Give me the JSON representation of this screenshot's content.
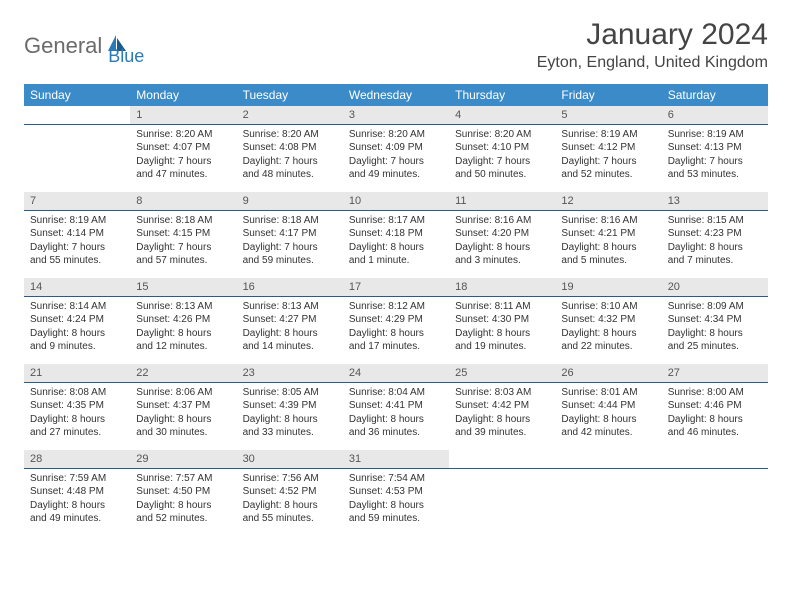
{
  "logo": {
    "part1": "General",
    "part2": "Blue"
  },
  "title": "January 2024",
  "location": "Eyton, England, United Kingdom",
  "colors": {
    "header_bg": "#3b8bc8",
    "header_text": "#ffffff",
    "daynum_bg": "#e8e8e8",
    "daynum_border": "#2a5a8a",
    "body_text": "#333333",
    "logo_gray": "#6b6b6b",
    "logo_blue": "#2a7ab8"
  },
  "weekdays": [
    "Sunday",
    "Monday",
    "Tuesday",
    "Wednesday",
    "Thursday",
    "Friday",
    "Saturday"
  ],
  "weeks": [
    {
      "nums": [
        "",
        "1",
        "2",
        "3",
        "4",
        "5",
        "6"
      ],
      "cells": [
        {
          "sunrise": "",
          "sunset": "",
          "daylight": ""
        },
        {
          "sunrise": "Sunrise: 8:20 AM",
          "sunset": "Sunset: 4:07 PM",
          "daylight": "Daylight: 7 hours and 47 minutes."
        },
        {
          "sunrise": "Sunrise: 8:20 AM",
          "sunset": "Sunset: 4:08 PM",
          "daylight": "Daylight: 7 hours and 48 minutes."
        },
        {
          "sunrise": "Sunrise: 8:20 AM",
          "sunset": "Sunset: 4:09 PM",
          "daylight": "Daylight: 7 hours and 49 minutes."
        },
        {
          "sunrise": "Sunrise: 8:20 AM",
          "sunset": "Sunset: 4:10 PM",
          "daylight": "Daylight: 7 hours and 50 minutes."
        },
        {
          "sunrise": "Sunrise: 8:19 AM",
          "sunset": "Sunset: 4:12 PM",
          "daylight": "Daylight: 7 hours and 52 minutes."
        },
        {
          "sunrise": "Sunrise: 8:19 AM",
          "sunset": "Sunset: 4:13 PM",
          "daylight": "Daylight: 7 hours and 53 minutes."
        }
      ]
    },
    {
      "nums": [
        "7",
        "8",
        "9",
        "10",
        "11",
        "12",
        "13"
      ],
      "cells": [
        {
          "sunrise": "Sunrise: 8:19 AM",
          "sunset": "Sunset: 4:14 PM",
          "daylight": "Daylight: 7 hours and 55 minutes."
        },
        {
          "sunrise": "Sunrise: 8:18 AM",
          "sunset": "Sunset: 4:15 PM",
          "daylight": "Daylight: 7 hours and 57 minutes."
        },
        {
          "sunrise": "Sunrise: 8:18 AM",
          "sunset": "Sunset: 4:17 PM",
          "daylight": "Daylight: 7 hours and 59 minutes."
        },
        {
          "sunrise": "Sunrise: 8:17 AM",
          "sunset": "Sunset: 4:18 PM",
          "daylight": "Daylight: 8 hours and 1 minute."
        },
        {
          "sunrise": "Sunrise: 8:16 AM",
          "sunset": "Sunset: 4:20 PM",
          "daylight": "Daylight: 8 hours and 3 minutes."
        },
        {
          "sunrise": "Sunrise: 8:16 AM",
          "sunset": "Sunset: 4:21 PM",
          "daylight": "Daylight: 8 hours and 5 minutes."
        },
        {
          "sunrise": "Sunrise: 8:15 AM",
          "sunset": "Sunset: 4:23 PM",
          "daylight": "Daylight: 8 hours and 7 minutes."
        }
      ]
    },
    {
      "nums": [
        "14",
        "15",
        "16",
        "17",
        "18",
        "19",
        "20"
      ],
      "cells": [
        {
          "sunrise": "Sunrise: 8:14 AM",
          "sunset": "Sunset: 4:24 PM",
          "daylight": "Daylight: 8 hours and 9 minutes."
        },
        {
          "sunrise": "Sunrise: 8:13 AM",
          "sunset": "Sunset: 4:26 PM",
          "daylight": "Daylight: 8 hours and 12 minutes."
        },
        {
          "sunrise": "Sunrise: 8:13 AM",
          "sunset": "Sunset: 4:27 PM",
          "daylight": "Daylight: 8 hours and 14 minutes."
        },
        {
          "sunrise": "Sunrise: 8:12 AM",
          "sunset": "Sunset: 4:29 PM",
          "daylight": "Daylight: 8 hours and 17 minutes."
        },
        {
          "sunrise": "Sunrise: 8:11 AM",
          "sunset": "Sunset: 4:30 PM",
          "daylight": "Daylight: 8 hours and 19 minutes."
        },
        {
          "sunrise": "Sunrise: 8:10 AM",
          "sunset": "Sunset: 4:32 PM",
          "daylight": "Daylight: 8 hours and 22 minutes."
        },
        {
          "sunrise": "Sunrise: 8:09 AM",
          "sunset": "Sunset: 4:34 PM",
          "daylight": "Daylight: 8 hours and 25 minutes."
        }
      ]
    },
    {
      "nums": [
        "21",
        "22",
        "23",
        "24",
        "25",
        "26",
        "27"
      ],
      "cells": [
        {
          "sunrise": "Sunrise: 8:08 AM",
          "sunset": "Sunset: 4:35 PM",
          "daylight": "Daylight: 8 hours and 27 minutes."
        },
        {
          "sunrise": "Sunrise: 8:06 AM",
          "sunset": "Sunset: 4:37 PM",
          "daylight": "Daylight: 8 hours and 30 minutes."
        },
        {
          "sunrise": "Sunrise: 8:05 AM",
          "sunset": "Sunset: 4:39 PM",
          "daylight": "Daylight: 8 hours and 33 minutes."
        },
        {
          "sunrise": "Sunrise: 8:04 AM",
          "sunset": "Sunset: 4:41 PM",
          "daylight": "Daylight: 8 hours and 36 minutes."
        },
        {
          "sunrise": "Sunrise: 8:03 AM",
          "sunset": "Sunset: 4:42 PM",
          "daylight": "Daylight: 8 hours and 39 minutes."
        },
        {
          "sunrise": "Sunrise: 8:01 AM",
          "sunset": "Sunset: 4:44 PM",
          "daylight": "Daylight: 8 hours and 42 minutes."
        },
        {
          "sunrise": "Sunrise: 8:00 AM",
          "sunset": "Sunset: 4:46 PM",
          "daylight": "Daylight: 8 hours and 46 minutes."
        }
      ]
    },
    {
      "nums": [
        "28",
        "29",
        "30",
        "31",
        "",
        "",
        ""
      ],
      "cells": [
        {
          "sunrise": "Sunrise: 7:59 AM",
          "sunset": "Sunset: 4:48 PM",
          "daylight": "Daylight: 8 hours and 49 minutes."
        },
        {
          "sunrise": "Sunrise: 7:57 AM",
          "sunset": "Sunset: 4:50 PM",
          "daylight": "Daylight: 8 hours and 52 minutes."
        },
        {
          "sunrise": "Sunrise: 7:56 AM",
          "sunset": "Sunset: 4:52 PM",
          "daylight": "Daylight: 8 hours and 55 minutes."
        },
        {
          "sunrise": "Sunrise: 7:54 AM",
          "sunset": "Sunset: 4:53 PM",
          "daylight": "Daylight: 8 hours and 59 minutes."
        },
        {
          "sunrise": "",
          "sunset": "",
          "daylight": ""
        },
        {
          "sunrise": "",
          "sunset": "",
          "daylight": ""
        },
        {
          "sunrise": "",
          "sunset": "",
          "daylight": ""
        }
      ]
    }
  ]
}
